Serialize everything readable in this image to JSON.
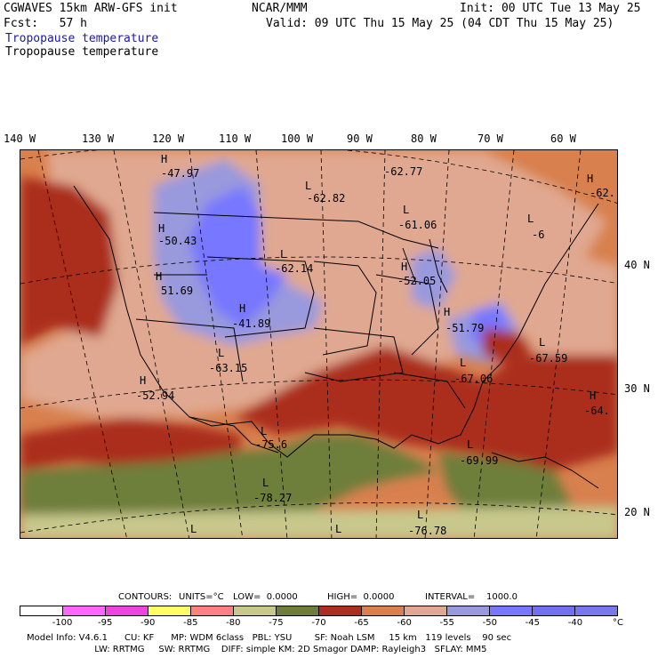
{
  "header": {
    "model": "CGWAVES 15km ARW-GFS init",
    "org": "NCAR/MMM",
    "init": "Init: 00 UTC Tue 13 May 25",
    "fcst": "Fcst:   57 h",
    "valid": "Valid: 09 UTC Thu 15 May 25 (04 CDT Thu 15 May 25)",
    "field_shaded": "Tropopause temperature",
    "field_contour": "Tropopause temperature"
  },
  "map": {
    "lon_labels": [
      "140 W",
      "130 W",
      "120 W",
      "110 W",
      "100 W",
      "90 W",
      "80 W",
      "70 W",
      "60 W"
    ],
    "lat_labels": [
      "40 N",
      "30 N",
      "20 N"
    ],
    "centers": [
      {
        "type": "H",
        "value": "-47.97"
      },
      {
        "type": "L",
        "value": "-62.82"
      },
      {
        "type": "",
        "value": "-62.77"
      },
      {
        "type": "H",
        "value": "-62."
      },
      {
        "type": "L",
        "value": "-61.06"
      },
      {
        "type": "L",
        "value": "-6"
      },
      {
        "type": "H",
        "value": "-50.43"
      },
      {
        "type": "L",
        "value": "-62.14"
      },
      {
        "type": "H",
        "value": "-52.05"
      },
      {
        "type": "H",
        "value": "51.69"
      },
      {
        "type": "H",
        "value": "-41.89"
      },
      {
        "type": "H",
        "value": "-51.79"
      },
      {
        "type": "L",
        "value": "-67.59"
      },
      {
        "type": "L",
        "value": "-63.15"
      },
      {
        "type": "L",
        "value": "-67.06"
      },
      {
        "type": "H",
        "value": "-52.94"
      },
      {
        "type": "H",
        "value": "-64."
      },
      {
        "type": "L",
        "value": "-75.6"
      },
      {
        "type": "L",
        "value": "-69.99"
      },
      {
        "type": "L",
        "value": "-78.27"
      },
      {
        "type": "L",
        "value": "-76.78"
      },
      {
        "type": "L",
        "value": ""
      },
      {
        "type": "L",
        "value": ""
      }
    ]
  },
  "contours": {
    "label": "CONTOURS:",
    "units": "UNITS=°C",
    "low": "LOW=  0.0000",
    "high": "HIGH=  0.0000",
    "interval": "INTERVAL=    1000.0"
  },
  "legend": {
    "colors": [
      "#ffffff",
      "#ff66ff",
      "#ee44dd",
      "#ffff66",
      "#ff8080",
      "#c8c88c",
      "#6e7e3a",
      "#ab2e1e",
      "#d8804e",
      "#e0a890",
      "#9999dd",
      "#7777ff",
      "#7070f0",
      "#7777ee"
    ],
    "ticks": [
      "-100",
      "-95",
      "-90",
      "-85",
      "-80",
      "-75",
      "-70",
      "-65",
      "-60",
      "-55",
      "-50",
      "-45",
      "-40"
    ],
    "unit": "°C"
  },
  "footer": {
    "line1": "Model Info: V4.6.1      CU: KF      MP: WDM 6class   PBL: YSU        SF: Noah LSM     15 km   119 levels    90 sec",
    "line2": "                        LW: RRTMG     SW: RRTMG    DIFF: simple KM: 2D Smagor DAMP: Rayleigh3   SFLAY: MM5"
  }
}
